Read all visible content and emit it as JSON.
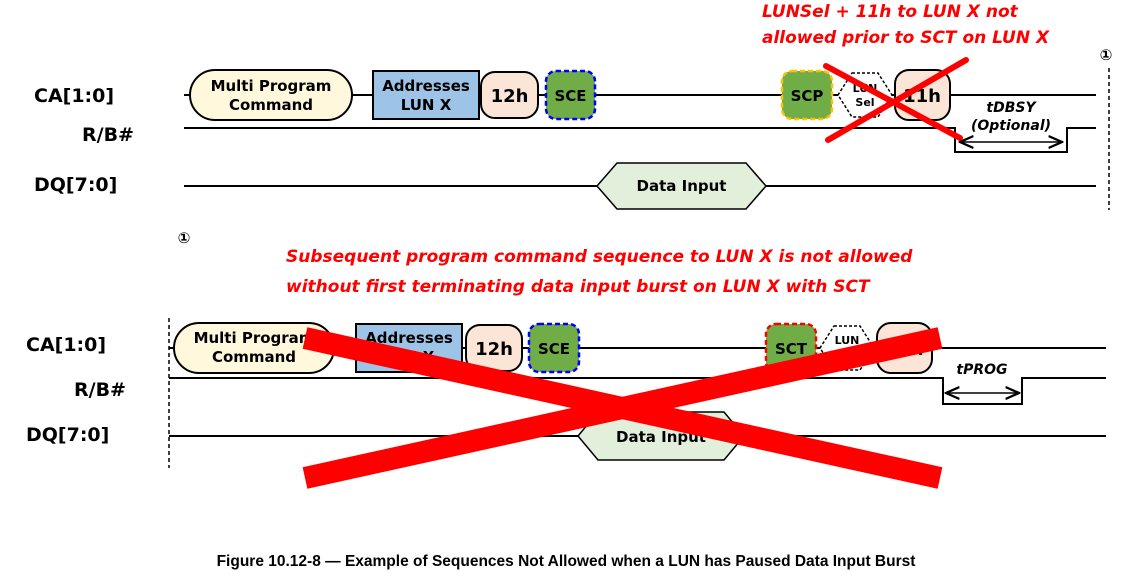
{
  "caption": "Figure 10.12-8 — Example of Sequences Not Allowed when a LUN has Paused Data Input Burst",
  "markers": {
    "sync": "①"
  },
  "colors": {
    "prog_cmd_fill": "#fff8dc",
    "address_fill": "#9dc3e6",
    "cmd_fill": "#fbe5d6",
    "sce_fill": "#70ad47",
    "sce_border": "#0000ff",
    "scp_border": "#ffc000",
    "sct_border": "#ff0000",
    "data_fill": "#e2efda",
    "not_allowed": "#ff0000"
  },
  "top": {
    "note_line1": "LUNSel + 11h to LUN X not",
    "note_line2": "allowed prior to SCT on LUN X",
    "signals": {
      "ca": "CA[1:0]",
      "rb": "R/B#",
      "dq": "DQ[7:0]"
    },
    "prog_cmd_line1": "Multi Program",
    "prog_cmd_line2": "Command",
    "address_line1": "Addresses",
    "address_line2": "LUN X",
    "cmd_12h": "12h",
    "sce": "SCE",
    "scp": "SCP",
    "lunsel_line1": "LUN",
    "lunsel_line2": "Sel",
    "cmd_11h": "11h",
    "tdbsy": "tDBSY",
    "optional": "(Optional)",
    "data_input": "Data Input"
  },
  "bottom": {
    "note_line1": "Subsequent program command sequence to LUN X is not allowed",
    "note_line2": "without first terminating data input burst on LUN X with SCT",
    "signals": {
      "ca": "CA[1:0]",
      "rb": "R/B#",
      "dq": "DQ[7:0]"
    },
    "prog_cmd_line1": "Multi Program",
    "prog_cmd_line2": "Command",
    "address_line1": "Addresses",
    "address_line2": "LUN X",
    "cmd_12h": "12h",
    "sce": "SCE",
    "sct": "SCT",
    "lunsel_line1": "LUN",
    "lunsel_line2": "Sel",
    "cmd_10h": "10h",
    "tprog": "tPROG",
    "data_input": "Data Input"
  }
}
